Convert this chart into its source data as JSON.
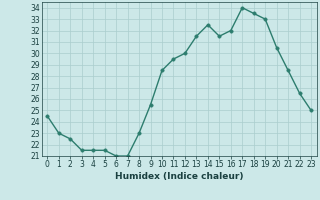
{
  "x": [
    0,
    1,
    2,
    3,
    4,
    5,
    6,
    7,
    8,
    9,
    10,
    11,
    12,
    13,
    14,
    15,
    16,
    17,
    18,
    19,
    20,
    21,
    22,
    23
  ],
  "y": [
    24.5,
    23.0,
    22.5,
    21.5,
    21.5,
    21.5,
    21.0,
    21.0,
    23.0,
    25.5,
    28.5,
    29.5,
    30.0,
    31.5,
    32.5,
    31.5,
    32.0,
    34.0,
    33.5,
    33.0,
    30.5,
    28.5,
    26.5,
    25.0
  ],
  "xlabel": "Humidex (Indice chaleur)",
  "xlim": [
    -0.5,
    23.5
  ],
  "ylim": [
    21,
    34.5
  ],
  "yticks": [
    21,
    22,
    23,
    24,
    25,
    26,
    27,
    28,
    29,
    30,
    31,
    32,
    33,
    34
  ],
  "xticks": [
    0,
    1,
    2,
    3,
    4,
    5,
    6,
    7,
    8,
    9,
    10,
    11,
    12,
    13,
    14,
    15,
    16,
    17,
    18,
    19,
    20,
    21,
    22,
    23
  ],
  "line_color": "#2d7d6e",
  "marker_color": "#2d7d6e",
  "bg_color": "#cce8e8",
  "grid_color": "#aacece",
  "tick_label_color": "#1a4040",
  "xlabel_color": "#1a4040",
  "line_width": 1.0,
  "marker_size": 2.5,
  "tick_fontsize": 5.5,
  "xlabel_fontsize": 6.5
}
